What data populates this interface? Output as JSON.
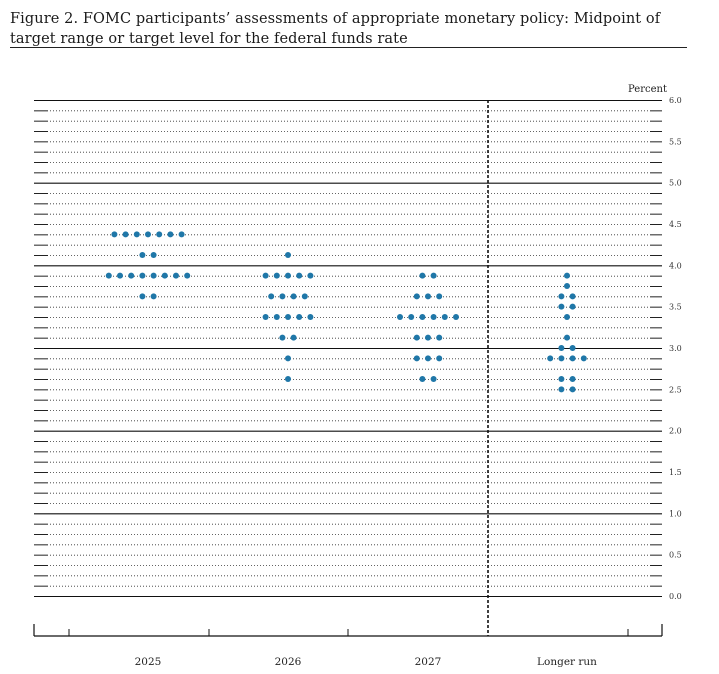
{
  "figure": {
    "title": "Figure 2.  FOMC participants’ assessments of appropriate monetary policy:  Midpoint of target range or target level for the federal funds rate"
  },
  "chart_data": {
    "type": "scatter",
    "subtype": "dot-plot",
    "title": "Figure 2.  FOMC participants’ assessments of appropriate monetary policy:  Midpoint of target range or target level for the federal funds rate",
    "ylabel": "Percent",
    "ylim": [
      0,
      6
    ],
    "yticks": [
      "0.0",
      "0.5",
      "1.0",
      "1.5",
      "2.0",
      "2.5",
      "3.0",
      "3.5",
      "4.0",
      "4.5",
      "5.0",
      "5.5",
      "6.0"
    ],
    "categories": [
      "2025",
      "2026",
      "2027",
      "Longer run"
    ],
    "dot_color": "#1f77a8",
    "grid": "solid lines at whole numbers, dotted lines at eighths",
    "separator_before": "Longer run",
    "points": [
      {
        "category": "2025",
        "y": 4.375,
        "count": 7
      },
      {
        "category": "2025",
        "y": 4.125,
        "count": 2
      },
      {
        "category": "2025",
        "y": 3.875,
        "count": 8
      },
      {
        "category": "2025",
        "y": 3.625,
        "count": 2
      },
      {
        "category": "2026",
        "y": 4.125,
        "count": 1
      },
      {
        "category": "2026",
        "y": 3.875,
        "count": 5
      },
      {
        "category": "2026",
        "y": 3.625,
        "count": 4
      },
      {
        "category": "2026",
        "y": 3.375,
        "count": 5
      },
      {
        "category": "2026",
        "y": 3.125,
        "count": 2
      },
      {
        "category": "2026",
        "y": 2.875,
        "count": 1
      },
      {
        "category": "2026",
        "y": 2.625,
        "count": 1
      },
      {
        "category": "2027",
        "y": 3.875,
        "count": 2
      },
      {
        "category": "2027",
        "y": 3.625,
        "count": 3
      },
      {
        "category": "2027",
        "y": 3.375,
        "count": 6
      },
      {
        "category": "2027",
        "y": 3.125,
        "count": 3
      },
      {
        "category": "2027",
        "y": 2.875,
        "count": 3
      },
      {
        "category": "2027",
        "y": 2.625,
        "count": 2
      },
      {
        "category": "Longer run",
        "y": 3.875,
        "count": 1
      },
      {
        "category": "Longer run",
        "y": 3.75,
        "count": 1
      },
      {
        "category": "Longer run",
        "y": 3.625,
        "count": 2
      },
      {
        "category": "Longer run",
        "y": 3.5,
        "count": 2
      },
      {
        "category": "Longer run",
        "y": 3.375,
        "count": 1
      },
      {
        "category": "Longer run",
        "y": 3.125,
        "count": 1
      },
      {
        "category": "Longer run",
        "y": 3.0,
        "count": 2
      },
      {
        "category": "Longer run",
        "y": 2.875,
        "count": 4
      },
      {
        "category": "Longer run",
        "y": 2.625,
        "count": 2
      },
      {
        "category": "Longer run",
        "y": 2.5,
        "count": 2
      }
    ]
  }
}
